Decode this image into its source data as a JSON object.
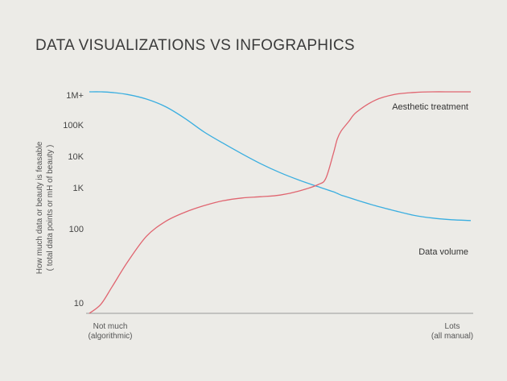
{
  "chart_data": {
    "type": "line",
    "title": "DATA VISUALIZATIONS VS INFOGRAPHICS",
    "ylabel_line1": "How much data or beauty is feasable",
    "ylabel_line2": "( total data points or mH of beauty )",
    "y_ticks": [
      "1M+",
      "100K",
      "10K",
      "1K",
      "100",
      "10"
    ],
    "x_start_label_line1": "Not much",
    "x_start_label_line2": "(algorithmic)",
    "x_end_label_line1": "Lots",
    "x_end_label_line2": "(all manual)",
    "x": [
      0,
      0.03,
      0.06,
      0.1,
      0.15,
      0.2,
      0.25,
      0.3,
      0.35,
      0.4,
      0.45,
      0.5,
      0.55,
      0.6,
      0.62,
      0.64,
      0.65,
      0.66,
      0.68,
      0.7,
      0.75,
      0.8,
      0.85,
      0.9,
      0.95,
      1.0
    ],
    "series": [
      {
        "name": "Data volume",
        "color": "#3aaee0",
        "values": [
          6.0,
          6.0,
          5.98,
          5.92,
          5.78,
          5.55,
          5.2,
          4.78,
          4.42,
          4.08,
          3.76,
          3.48,
          3.24,
          3.03,
          2.96,
          2.9,
          2.86,
          2.82,
          2.76,
          2.7,
          2.56,
          2.44,
          2.33,
          2.26,
          2.22,
          2.2
        ]
      },
      {
        "name": "Aesthetic treatment",
        "color": "#e06570",
        "values": [
          0.65,
          0.95,
          1.22,
          1.55,
          1.9,
          2.18,
          2.4,
          2.56,
          2.68,
          2.75,
          2.78,
          2.82,
          2.92,
          3.1,
          3.3,
          4.1,
          4.55,
          4.8,
          5.1,
          5.38,
          5.75,
          5.92,
          5.98,
          6.0,
          6.0,
          6.0
        ]
      }
    ],
    "colors": {
      "axis": "#999999"
    }
  }
}
